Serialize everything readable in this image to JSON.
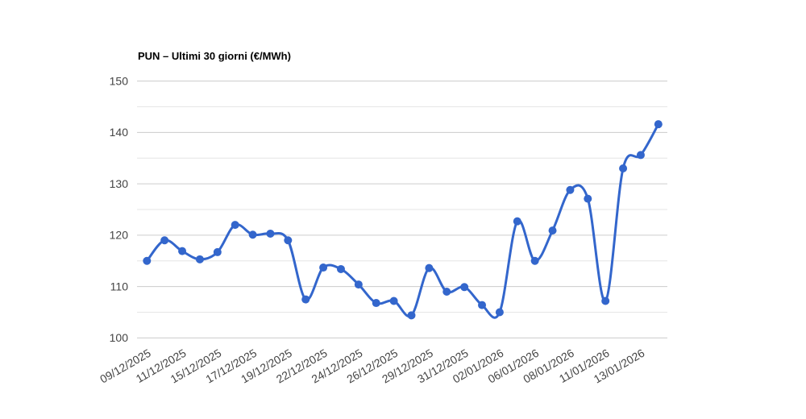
{
  "page": {
    "background": "#ffffff"
  },
  "chart_data": {
    "type": "line",
    "title": "PUN – Ultimi 30 giorni (€/MWh)",
    "xlabel": "",
    "ylabel": "",
    "ylim": [
      100,
      150
    ],
    "y_ticks": [
      150,
      140,
      130,
      120,
      110,
      100
    ],
    "y_minor_ticks": [
      145,
      135,
      125,
      115,
      105
    ],
    "grid": true,
    "legend": "none",
    "x_label_angle_deg": 30,
    "tick_every": 2,
    "x_tick_labels": [
      "09/12/2025",
      "11/12/2025",
      "15/12/2025",
      "17/12/2025",
      "19/12/2025",
      "22/12/2025",
      "24/12/2025",
      "26/12/2025",
      "29/12/2025",
      "31/12/2025",
      "02/01/2026",
      "06/01/2026",
      "08/01/2026",
      "11/01/2026",
      "13/01/2026"
    ],
    "series": [
      {
        "name": "PUN",
        "values": [
          115,
          119,
          116.9,
          115.3,
          116.7,
          122,
          120.1,
          120.3,
          119,
          107.5,
          113.7,
          113.4,
          110.4,
          106.8,
          107.2,
          104.4,
          113.6,
          109,
          109.9,
          106.4,
          105,
          122.7,
          115,
          120.9,
          128.8,
          127.1,
          107.2,
          133,
          135.6,
          141.6
        ]
      }
    ],
    "colors": {
      "series": "#3366cc",
      "gridline_major": "#cccccc",
      "gridline_minor": "#e6e6e6",
      "axis_label": "#444444",
      "title": "#000000",
      "background": "#ffffff"
    },
    "style": {
      "line_width": 3,
      "point_radius": 5,
      "curve": "smooth"
    }
  }
}
